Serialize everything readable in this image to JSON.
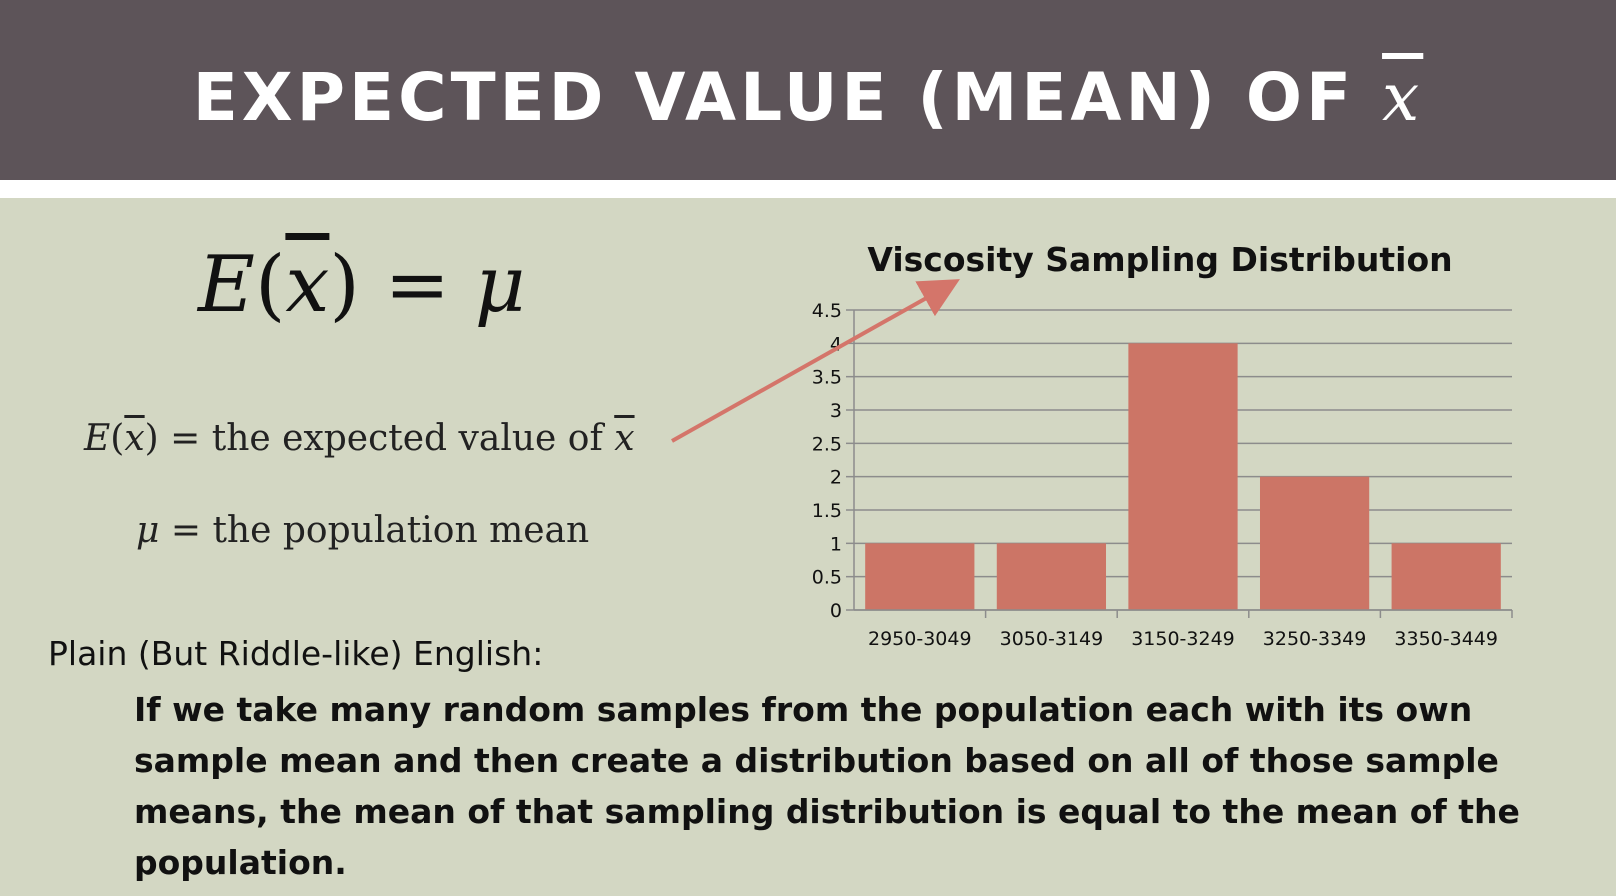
{
  "slide": {
    "title": "EXPECTED VALUE (MEAN) OF",
    "title_symbol": "x"
  },
  "formula": {
    "main_lhs": "E",
    "main_symbol": "x",
    "main_rhs": "= μ",
    "def1_lhs": "E",
    "def1_symbol": "x",
    "def1_text": "= the expected value of",
    "def1_end_symbol": "x",
    "def2_symbol": "μ",
    "def2_text": "= the population mean"
  },
  "explanation": {
    "heading": "Plain (But Riddle-like) English:",
    "body": "If we take many random samples from the population each with its own sample mean and then create a distribution based on all of those sample means, the mean of that sampling distribution is equal to the mean of the population."
  },
  "chart_data": {
    "type": "bar",
    "title": "Viscosity Sampling Distribution",
    "categories": [
      "2950-3049",
      "3050-3149",
      "3150-3249",
      "3250-3349",
      "3350-3449"
    ],
    "values": [
      1,
      1,
      4,
      2,
      1
    ],
    "ylim": [
      0,
      4.5
    ],
    "yticks": [
      "0",
      "0.5",
      "1",
      "1.5",
      "2",
      "2.5",
      "3",
      "3.5",
      "4",
      "4.5"
    ],
    "xlabel": "",
    "ylabel": "",
    "grid": true,
    "bar_color": "#cc7566",
    "annotation_arrow_color": "#d4756a"
  }
}
